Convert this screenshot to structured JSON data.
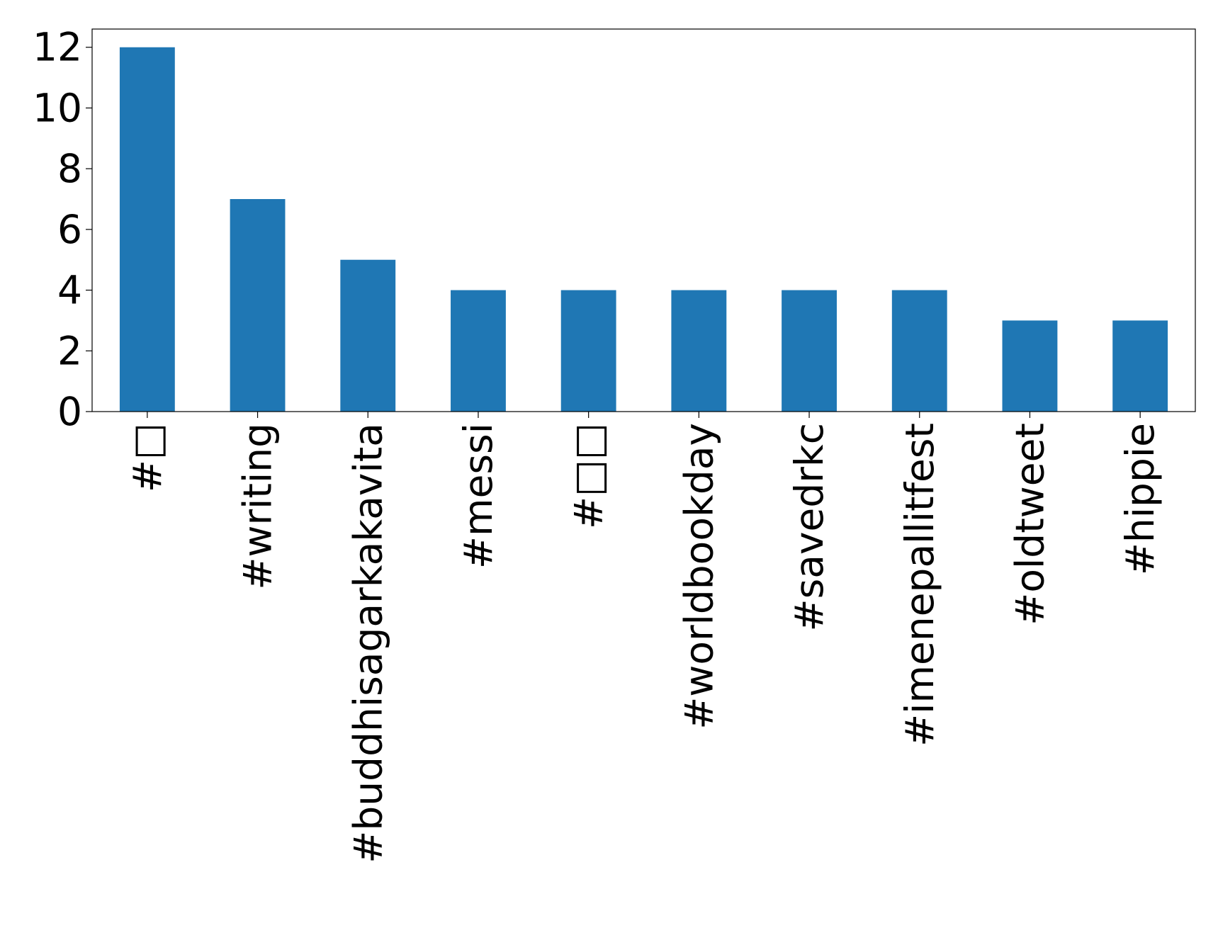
{
  "chart_data": {
    "type": "bar",
    "categories": [
      "#□",
      "#writing",
      "#buddhisagarkakavita",
      "#messi",
      "#□□",
      "#worldbookday",
      "#savedrkc",
      "#imenepallitfest",
      "#oldtweet",
      "#hippie"
    ],
    "values": [
      12,
      7,
      5,
      4,
      4,
      4,
      4,
      4,
      3,
      3
    ],
    "color": "#1f77b4",
    "ylim": [
      0,
      12.6
    ],
    "yticks": [
      0,
      2,
      4,
      6,
      8,
      10,
      12
    ],
    "grid": false
  }
}
